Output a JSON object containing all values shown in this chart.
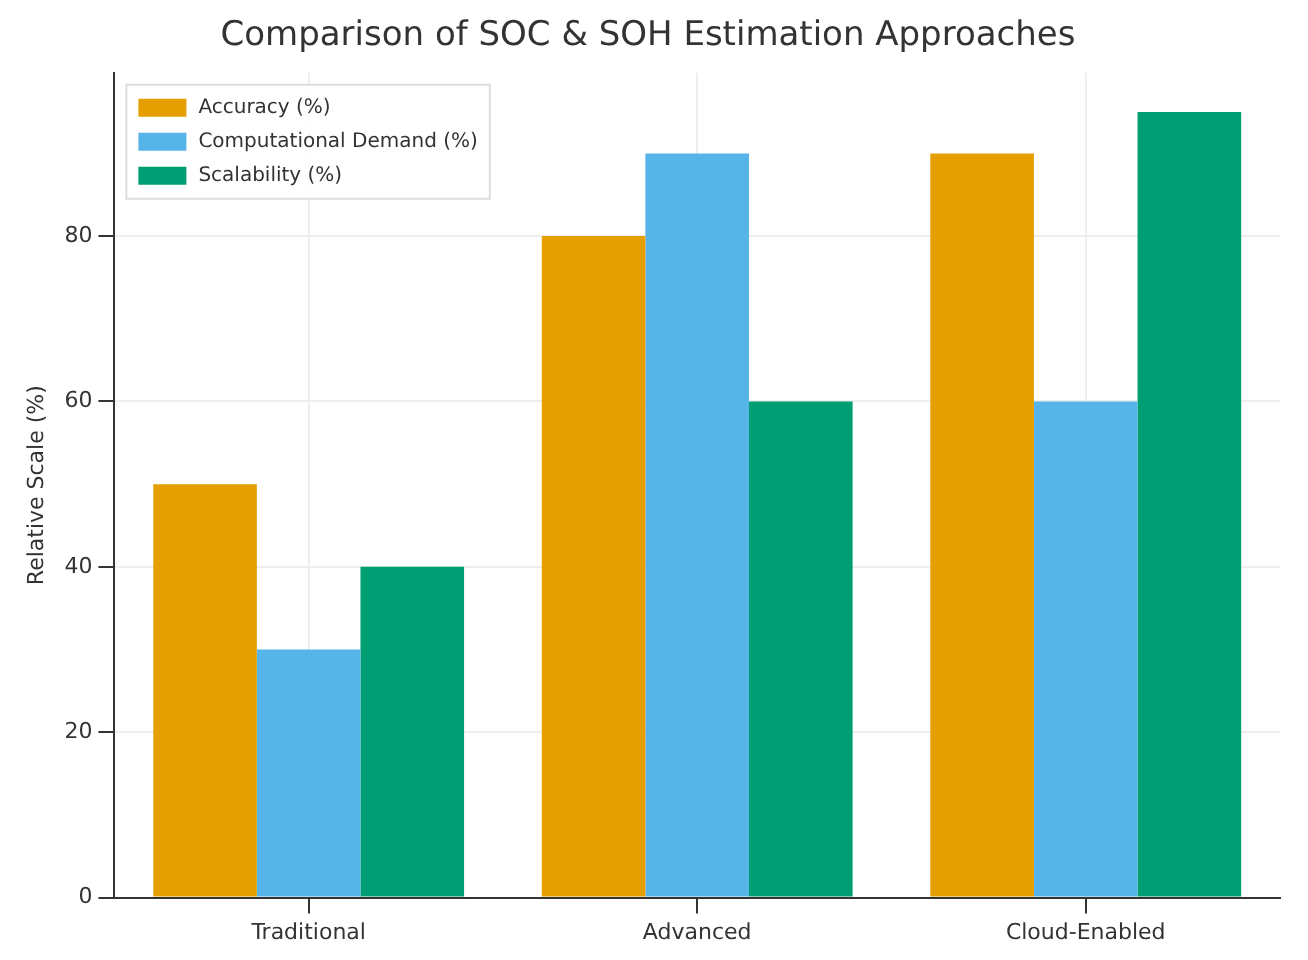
{
  "chart_data": {
    "type": "bar",
    "title": "Comparison of SOC & SOH Estimation Approaches",
    "ylabel": "Relative Scale (%)",
    "categories": [
      "Traditional",
      "Advanced",
      "Cloud-Enabled"
    ],
    "series": [
      {
        "name": "Accuracy (%)",
        "color": "#e69f00",
        "values": [
          50,
          80,
          90
        ]
      },
      {
        "name": "Computational Demand (%)",
        "color": "#56b4e9",
        "values": [
          30,
          90,
          60
        ]
      },
      {
        "name": "Scalability (%)",
        "color": "#009e73",
        "values": [
          40,
          60,
          95
        ]
      }
    ],
    "ylim": [
      0,
      99.75
    ],
    "yticks": [
      0,
      20,
      40,
      60,
      80
    ],
    "grid": true,
    "legend": "top left"
  }
}
